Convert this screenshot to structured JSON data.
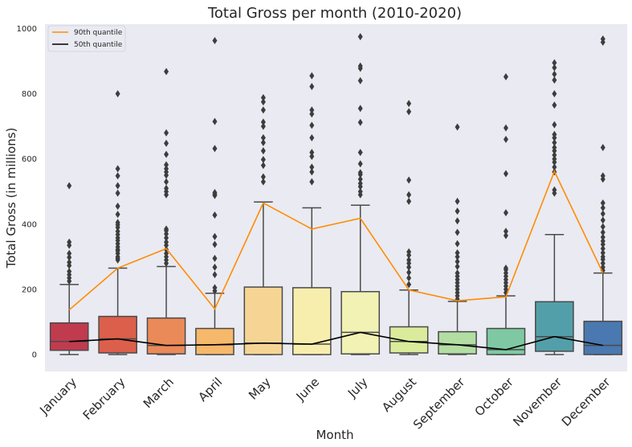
{
  "chart_data": {
    "type": "box",
    "title": "Total Gross per month (2010-2020)",
    "xlabel": "Month",
    "ylabel": "Total Gross (in millions)",
    "ylim": [
      -50,
      1020
    ],
    "yticks": [
      0,
      200,
      400,
      600,
      800,
      1000
    ],
    "grid": false,
    "legend_position": "top-left",
    "categories": [
      "January",
      "February",
      "March",
      "April",
      "May",
      "June",
      "July",
      "August",
      "September",
      "October",
      "November",
      "December"
    ],
    "box_colors": [
      "#c13b4f",
      "#dc5f4b",
      "#eb8a59",
      "#f6b86a",
      "#f6d594",
      "#f7eeae",
      "#f1f2b4",
      "#dbeb9c",
      "#b2dda3",
      "#7ec9a3",
      "#539fa9",
      "#4a78b0"
    ],
    "boxes": [
      {
        "q1": 13,
        "median": 40,
        "q3": 97,
        "whisker_low": 0,
        "whisker_high": 215,
        "fliers": [
          345,
          335,
          310,
          298,
          283,
          273,
          255,
          245,
          235,
          225,
          518
        ]
      },
      {
        "q1": 5,
        "median": 48,
        "q3": 117,
        "whisker_low": 0,
        "whisker_high": 265,
        "fliers": [
          290,
          295,
          300,
          310,
          318,
          322,
          330,
          340,
          350,
          358,
          368,
          378,
          390,
          398,
          405,
          430,
          455,
          495,
          518,
          548,
          570,
          800
        ]
      },
      {
        "q1": 2,
        "median": 28,
        "q3": 112,
        "whisker_low": 0,
        "whisker_high": 270,
        "fliers": [
          280,
          290,
          300,
          310,
          322,
          335,
          345,
          358,
          370,
          380,
          385,
          490,
          500,
          510,
          530,
          550,
          560,
          570,
          582,
          614,
          648,
          680,
          868
        ]
      },
      {
        "q1": 0,
        "median": 30,
        "q3": 80,
        "whisker_low": 0,
        "whisker_high": 188,
        "fliers": [
          195,
          205,
          245,
          268,
          295,
          338,
          362,
          428,
          488,
          492,
          497,
          632,
          715,
          963
        ]
      },
      {
        "q1": 0,
        "median": 35,
        "q3": 207,
        "whisker_low": 0,
        "whisker_high": 468,
        "fliers": [
          530,
          545,
          580,
          598,
          625,
          650,
          665,
          700,
          713,
          750,
          775,
          788
        ]
      },
      {
        "q1": 0,
        "median": 32,
        "q3": 205,
        "whisker_low": 0,
        "whisker_high": 450,
        "fliers": [
          530,
          560,
          575,
          608,
          620,
          665,
          703,
          738,
          750,
          822,
          855
        ]
      },
      {
        "q1": 2,
        "median": 68,
        "q3": 193,
        "whisker_low": 0,
        "whisker_high": 458,
        "fliers": [
          490,
          500,
          515,
          525,
          538,
          552,
          558,
          585,
          620,
          712,
          755,
          840,
          878,
          885,
          975
        ]
      },
      {
        "q1": 5,
        "median": 40,
        "q3": 85,
        "whisker_low": 0,
        "whisker_high": 198,
        "fliers": [
          215,
          235,
          252,
          268,
          280,
          290,
          305,
          315,
          470,
          490,
          535,
          745,
          770
        ]
      },
      {
        "q1": 2,
        "median": 30,
        "q3": 70,
        "whisker_low": 0,
        "whisker_high": 163,
        "fliers": [
          170,
          180,
          190,
          200,
          210,
          220,
          230,
          240,
          250,
          270,
          285,
          300,
          312,
          340,
          375,
          410,
          440,
          470,
          698
        ]
      },
      {
        "q1": 0,
        "median": 15,
        "q3": 80,
        "whisker_low": 0,
        "whisker_high": 180,
        "fliers": [
          190,
          200,
          210,
          220,
          230,
          240,
          250,
          260,
          265,
          365,
          378,
          435,
          555,
          660,
          695,
          852
        ]
      },
      {
        "q1": 10,
        "median": 55,
        "q3": 162,
        "whisker_low": 0,
        "whisker_high": 368,
        "fliers": [
          495,
          505,
          560,
          575,
          590,
          600,
          612,
          625,
          635,
          650,
          665,
          675,
          705,
          765,
          800,
          842,
          860,
          880,
          895
        ]
      },
      {
        "q1": 0,
        "median": 28,
        "q3": 102,
        "whisker_low": 0,
        "whisker_high": 250,
        "fliers": [
          258,
          268,
          280,
          292,
          300,
          312,
          325,
          338,
          348,
          360,
          375,
          392,
          412,
          432,
          450,
          465,
          538,
          548,
          635,
          958,
          968
        ]
      }
    ],
    "series": [
      {
        "name": "90th quantile",
        "color": "#ff8c00",
        "values": [
          137,
          265,
          325,
          140,
          465,
          385,
          418,
          198,
          165,
          177,
          562,
          250
        ]
      },
      {
        "name": "50th quantile",
        "color": "#000000",
        "values": [
          40,
          48,
          28,
          30,
          35,
          32,
          68,
          40,
          30,
          15,
          55,
          28
        ]
      }
    ]
  }
}
